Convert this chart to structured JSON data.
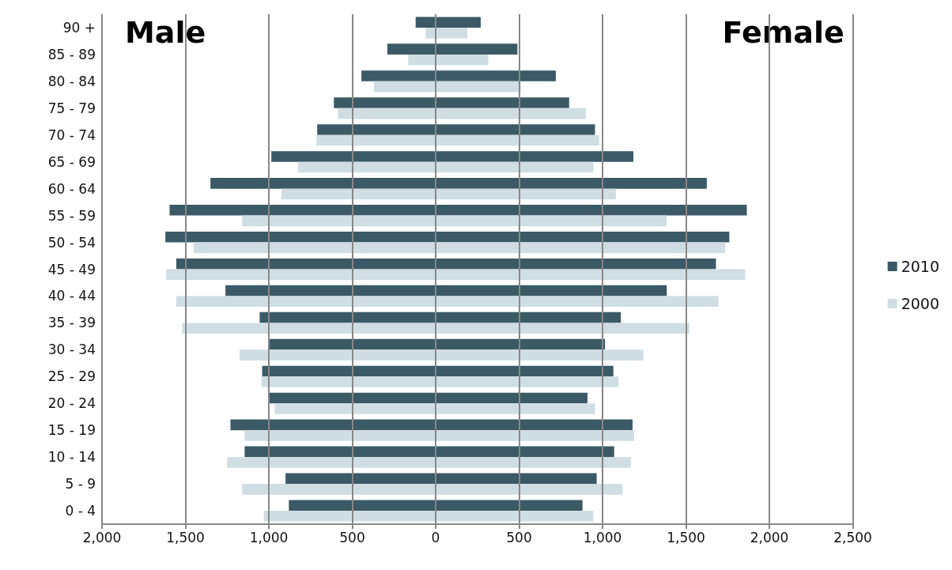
{
  "chart_data": [
    {
      "type": "bar",
      "orientation": "horizontal",
      "categories": [
        "90 +",
        "85 - 89",
        "80 - 84",
        "75 - 79",
        "70 - 74",
        "65 - 69",
        "60 - 64",
        "55 - 59",
        "50 - 54",
        "45 - 49",
        "40 - 44",
        "35 - 39",
        "30 - 34",
        "25 - 29",
        "20 - 24",
        "15 - 19",
        "10 - 14",
        "5 - 9",
        "0 - 4"
      ],
      "series": [
        {
          "color": "#3b5a65",
          "values": [
            120,
            290,
            445,
            610,
            710,
            985,
            1350,
            1595,
            1620,
            1555,
            1260,
            1055,
            1005,
            1040,
            1000,
            1230,
            1145,
            900,
            880
          ]
        },
        {
          "color": "#d0dee3",
          "values": [
            60,
            165,
            370,
            585,
            715,
            825,
            925,
            1160,
            1450,
            1615,
            1555,
            1520,
            1175,
            1045,
            965,
            1145,
            1250,
            1160,
            1030
          ]
        }
      ],
      "xlim": [
        2000,
        0
      ],
      "xticks": [
        {
          "value": 2000,
          "label": "2,000"
        },
        {
          "value": 1500,
          "label": "1,500"
        },
        {
          "value": 1000,
          "label": "1,000"
        },
        {
          "value": 500,
          "label": "500"
        },
        {
          "value": 0,
          "label": null
        }
      ],
      "grid": "x",
      "annotations": [
        "Male"
      ]
    },
    {
      "type": "bar",
      "orientation": "horizontal",
      "categories": [
        null,
        null,
        null,
        null,
        null,
        null,
        null,
        null,
        null,
        null,
        null,
        null,
        null,
        null,
        null,
        null,
        null,
        null,
        null
      ],
      "series": [
        {
          "name": "2010",
          "color": "#3b5a65",
          "values": [
            270,
            490,
            720,
            800,
            955,
            1185,
            1625,
            1865,
            1760,
            1680,
            1385,
            1110,
            1015,
            1065,
            910,
            1180,
            1070,
            965,
            880
          ]
        },
        {
          "name": "2000",
          "color": "#d0dee3",
          "values": [
            190,
            315,
            510,
            900,
            980,
            945,
            1080,
            1385,
            1735,
            1855,
            1695,
            1520,
            1245,
            1095,
            955,
            1190,
            1170,
            1120,
            945
          ]
        }
      ],
      "xlim": [
        0,
        2500
      ],
      "xticks": [
        {
          "value": 0,
          "label": "0"
        },
        {
          "value": 500,
          "label": "500"
        },
        {
          "value": 1000,
          "label": "1,000"
        },
        {
          "value": 1500,
          "label": "1,500"
        },
        {
          "value": 2000,
          "label": "2,000"
        },
        {
          "value": 2500,
          "label": "2,500"
        }
      ],
      "grid": "x",
      "legend": "right",
      "annotations": [
        "Female"
      ]
    }
  ]
}
